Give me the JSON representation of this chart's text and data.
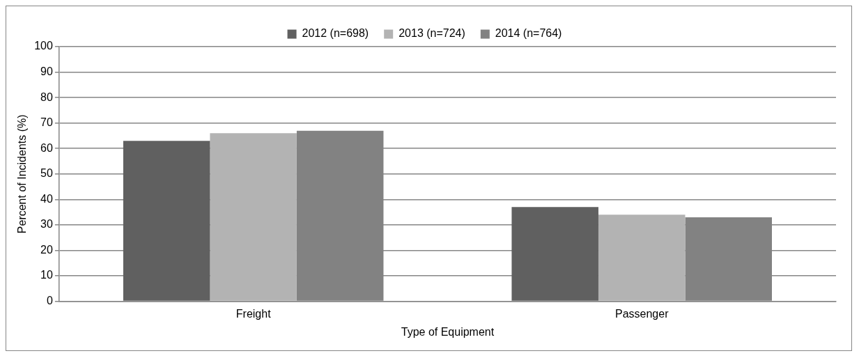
{
  "chart_data": {
    "type": "bar",
    "xlabel": "Type of Equipment",
    "ylabel": "Percent of Incidents (%)",
    "categories": [
      "Freight",
      "Passenger"
    ],
    "series": [
      {
        "name": "2012 (n=698)",
        "color": "#606060",
        "values": [
          63,
          37
        ]
      },
      {
        "name": "2013 (n=724)",
        "color": "#b3b3b3",
        "values": [
          66,
          34
        ]
      },
      {
        "name": "2014 (n=764)",
        "color": "#828282",
        "values": [
          67,
          33
        ]
      }
    ],
    "ylim": [
      0,
      100
    ],
    "yticks": [
      0,
      10,
      20,
      30,
      40,
      50,
      60,
      70,
      80,
      90,
      100
    ],
    "grid": "y",
    "legend": "top"
  }
}
